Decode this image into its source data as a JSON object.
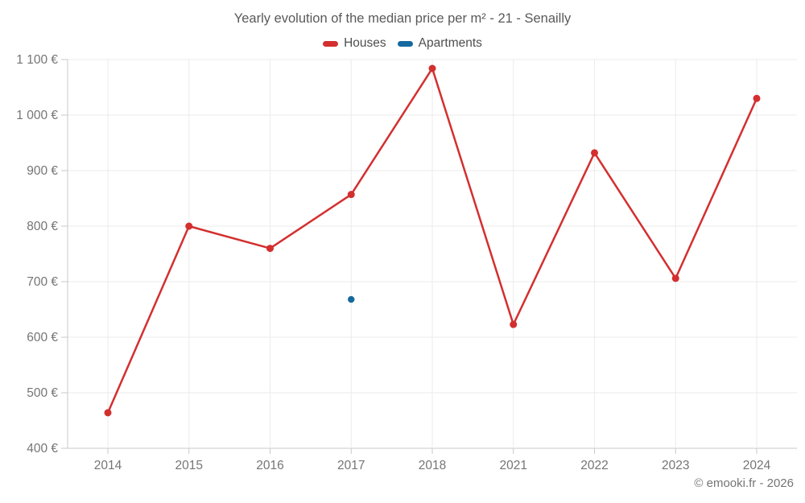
{
  "title": "Yearly evolution of the median price per m² - 21 - Senailly",
  "footer": "© emooki.fr - 2026",
  "colors": {
    "houses": "#d32f2f",
    "apartments": "#15699e",
    "grid": "#ebebeb",
    "axis": "#c9c9c9",
    "tick_label": "#757575",
    "title": "#595959"
  },
  "chart_data": {
    "type": "line",
    "title": "Yearly evolution of the median price per m² - 21 - Senailly",
    "categories": [
      "2014",
      "2015",
      "2016",
      "2017",
      "2018",
      "2021",
      "2022",
      "2023",
      "2024"
    ],
    "series": [
      {
        "name": "Houses",
        "color": "#d32f2f",
        "values": [
          464,
          800,
          760,
          857,
          1084,
          623,
          932,
          706,
          1030
        ]
      },
      {
        "name": "Apartments",
        "color": "#15699e",
        "values": [
          null,
          null,
          null,
          668,
          null,
          null,
          null,
          null,
          null
        ]
      }
    ],
    "xlabel": "",
    "ylabel": "",
    "ylim": [
      400,
      1100
    ],
    "y_ticks": [
      400,
      500,
      600,
      700,
      800,
      900,
      1000,
      1100
    ],
    "y_tick_labels": [
      "400 €",
      "500 €",
      "600 €",
      "700 €",
      "800 €",
      "900 €",
      "1 000 €",
      "1 100 €"
    ],
    "grid": true,
    "legend_position": "top",
    "note": "Years 2019 and 2020 absent from x axis; Apartments has a single data point in 2017"
  }
}
